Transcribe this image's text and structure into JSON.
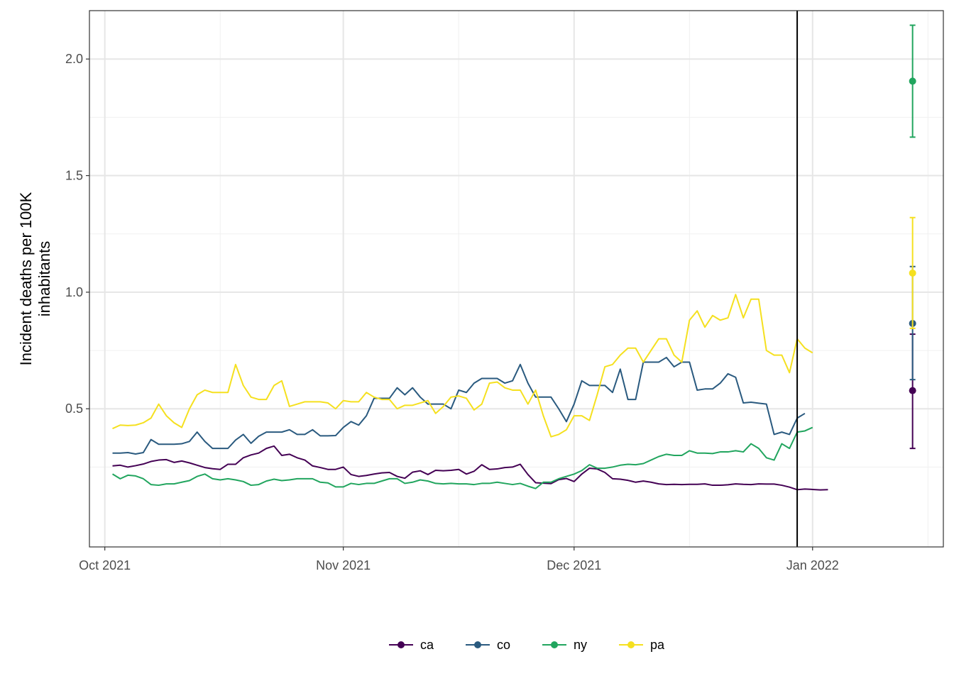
{
  "chart_data": {
    "type": "line",
    "ylabel": [
      "Incident deaths per 100K",
      "inhabitants"
    ],
    "xlabel": "",
    "xlim": [
      "2021-09-30",
      "2022-01-19"
    ],
    "ylim": [
      -0.0925,
      2.2075
    ],
    "x_ticks": [
      {
        "date": "2021-10-02",
        "label": "Oct 2021"
      },
      {
        "date": "2021-11-02",
        "label": "Nov 2021"
      },
      {
        "date": "2021-12-02",
        "label": "Dec 2021"
      },
      {
        "date": "2022-01-02",
        "label": "Jan 2022"
      }
    ],
    "x_minor_ticks": [
      "2021-10-17",
      "2021-11-17",
      "2021-12-17",
      "2022-01-17"
    ],
    "y_ticks": [
      0.5,
      1.0,
      1.5,
      2.0
    ],
    "y_tick_labels": [
      "0.5",
      "1.0",
      "1.5",
      "2.0"
    ],
    "y_minor_ticks": [
      0.25,
      0.75,
      1.25,
      1.75
    ],
    "grid": true,
    "legend": {
      "position": "bottom",
      "labels": [
        "ca",
        "co",
        "ny",
        "pa"
      ]
    },
    "vline_date": "2021-12-31",
    "start_date": "2021-10-03",
    "series": [
      {
        "name": "ca",
        "color": "#440154",
        "values": [
          0.255,
          0.258,
          0.25,
          0.256,
          0.263,
          0.274,
          0.28,
          0.282,
          0.27,
          0.276,
          0.268,
          0.258,
          0.248,
          0.243,
          0.24,
          0.262,
          0.262,
          0.29,
          0.302,
          0.31,
          0.33,
          0.34,
          0.3,
          0.305,
          0.29,
          0.28,
          0.255,
          0.248,
          0.24,
          0.24,
          0.25,
          0.218,
          0.21,
          0.214,
          0.22,
          0.225,
          0.227,
          0.21,
          0.202,
          0.228,
          0.234,
          0.218,
          0.236,
          0.234,
          0.236,
          0.24,
          0.22,
          0.232,
          0.26,
          0.24,
          0.242,
          0.248,
          0.25,
          0.262,
          0.218,
          0.183,
          0.181,
          0.179,
          0.196,
          0.201,
          0.188,
          0.22,
          0.245,
          0.242,
          0.227,
          0.2,
          0.198,
          0.193,
          0.185,
          0.19,
          0.185,
          0.178,
          0.175,
          0.176,
          0.175,
          0.176,
          0.176,
          0.178,
          0.172,
          0.172,
          0.174,
          0.178,
          0.176,
          0.175,
          0.178,
          0.177,
          0.177,
          0.172,
          0.164,
          0.153,
          0.156,
          0.154,
          0.152,
          0.153
        ]
      },
      {
        "name": "co",
        "color": "#2a5a7f",
        "values": [
          0.31,
          0.31,
          0.312,
          0.306,
          0.312,
          0.368,
          0.348,
          0.348,
          0.348,
          0.35,
          0.36,
          0.4,
          0.36,
          0.33,
          0.33,
          0.33,
          0.366,
          0.39,
          0.352,
          0.382,
          0.4,
          0.4,
          0.4,
          0.41,
          0.39,
          0.39,
          0.41,
          0.384,
          0.384,
          0.385,
          0.42,
          0.445,
          0.43,
          0.47,
          0.545,
          0.545,
          0.545,
          0.59,
          0.56,
          0.59,
          0.55,
          0.52,
          0.52,
          0.52,
          0.5,
          0.58,
          0.57,
          0.61,
          0.63,
          0.63,
          0.63,
          0.61,
          0.62,
          0.69,
          0.61,
          0.55,
          0.55,
          0.55,
          0.5,
          0.445,
          0.52,
          0.62,
          0.6,
          0.6,
          0.6,
          0.57,
          0.67,
          0.54,
          0.54,
          0.7,
          0.7,
          0.7,
          0.72,
          0.68,
          0.7,
          0.7,
          0.58,
          0.585,
          0.585,
          0.61,
          0.65,
          0.635,
          0.525,
          0.528,
          0.524,
          0.52,
          0.39,
          0.4,
          0.39,
          0.46,
          0.48
        ]
      },
      {
        "name": "ny",
        "color": "#21a55e",
        "values": [
          0.22,
          0.2,
          0.215,
          0.212,
          0.2,
          0.175,
          0.172,
          0.178,
          0.178,
          0.185,
          0.192,
          0.21,
          0.22,
          0.2,
          0.195,
          0.2,
          0.195,
          0.188,
          0.172,
          0.175,
          0.19,
          0.198,
          0.192,
          0.195,
          0.2,
          0.2,
          0.2,
          0.185,
          0.182,
          0.165,
          0.165,
          0.18,
          0.175,
          0.18,
          0.18,
          0.19,
          0.2,
          0.2,
          0.18,
          0.185,
          0.195,
          0.19,
          0.18,
          0.178,
          0.18,
          0.178,
          0.178,
          0.175,
          0.18,
          0.18,
          0.185,
          0.18,
          0.175,
          0.18,
          0.168,
          0.158,
          0.185,
          0.185,
          0.2,
          0.21,
          0.22,
          0.235,
          0.26,
          0.245,
          0.245,
          0.25,
          0.258,
          0.262,
          0.26,
          0.265,
          0.28,
          0.295,
          0.305,
          0.3,
          0.3,
          0.32,
          0.31,
          0.31,
          0.308,
          0.315,
          0.315,
          0.32,
          0.315,
          0.35,
          0.33,
          0.29,
          0.28,
          0.35,
          0.33,
          0.4,
          0.405,
          0.42
        ]
      },
      {
        "name": "pa",
        "color": "#f5e01f",
        "values": [
          0.415,
          0.43,
          0.428,
          0.43,
          0.44,
          0.46,
          0.52,
          0.47,
          0.44,
          0.42,
          0.5,
          0.56,
          0.58,
          0.57,
          0.57,
          0.57,
          0.69,
          0.6,
          0.55,
          0.54,
          0.54,
          0.6,
          0.62,
          0.51,
          0.52,
          0.53,
          0.53,
          0.53,
          0.525,
          0.5,
          0.535,
          0.53,
          0.53,
          0.57,
          0.55,
          0.54,
          0.54,
          0.5,
          0.515,
          0.515,
          0.525,
          0.535,
          0.48,
          0.51,
          0.55,
          0.555,
          0.545,
          0.495,
          0.52,
          0.61,
          0.615,
          0.59,
          0.58,
          0.58,
          0.52,
          0.58,
          0.47,
          0.38,
          0.39,
          0.41,
          0.47,
          0.47,
          0.45,
          0.56,
          0.68,
          0.69,
          0.73,
          0.76,
          0.76,
          0.7,
          0.75,
          0.8,
          0.8,
          0.73,
          0.7,
          0.88,
          0.92,
          0.85,
          0.9,
          0.88,
          0.89,
          0.99,
          0.89,
          0.97,
          0.97,
          0.75,
          0.73,
          0.73,
          0.655,
          0.8,
          0.76,
          0.74
        ]
      }
    ],
    "forecast_date": "2022-01-15",
    "forecasts": [
      {
        "name": "ca",
        "color": "#440154",
        "mean": 0.578,
        "lower": 0.33,
        "upper": 0.82
      },
      {
        "name": "co",
        "color": "#2a5a7f",
        "mean": 0.866,
        "lower": 0.625,
        "upper": 1.11
      },
      {
        "name": "ny",
        "color": "#21a55e",
        "mean": 1.905,
        "lower": 1.665,
        "upper": 2.145
      },
      {
        "name": "pa",
        "color": "#f5e01f",
        "mean": 1.082,
        "lower": 0.845,
        "upper": 1.32
      }
    ]
  }
}
